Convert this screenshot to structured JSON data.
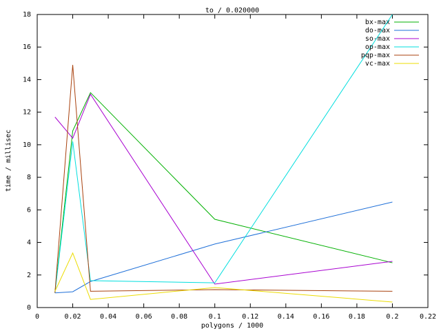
{
  "chart_data": {
    "type": "line",
    "title": "to / 0.020000",
    "x_label": "polygons / 1000",
    "y_label": "time / millisec",
    "x": [
      0.01,
      0.02,
      0.03,
      0.1,
      0.2
    ],
    "series": [
      {
        "name": "bx-max",
        "color": "#00b000",
        "values": [
          0.93,
          10.85,
          13.2,
          5.42,
          2.75
        ]
      },
      {
        "name": "do-max",
        "color": "#1e6fd8",
        "values": [
          0.9,
          0.97,
          1.6,
          3.9,
          6.48
        ]
      },
      {
        "name": "so-max",
        "color": "#a800d0",
        "values": [
          11.7,
          10.4,
          13.1,
          1.44,
          2.84
        ]
      },
      {
        "name": "op-max",
        "color": "#00dede",
        "values": [
          0.9,
          10.2,
          1.65,
          1.52,
          18.0
        ]
      },
      {
        "name": "pqp-max",
        "color": "#a8400c",
        "values": [
          0.9,
          14.9,
          1.0,
          1.1,
          1.0
        ]
      },
      {
        "name": "vc-max",
        "color": "#ecdc00",
        "values": [
          1.0,
          3.35,
          0.5,
          1.23,
          0.34
        ]
      }
    ],
    "xlim": [
      0,
      0.22
    ],
    "xticks": [
      0,
      0.02,
      0.04,
      0.06,
      0.08,
      0.1,
      0.12,
      0.14,
      0.16,
      0.18,
      0.2,
      0.22
    ],
    "ylim": [
      0,
      18
    ],
    "yticks": [
      0,
      2,
      4,
      6,
      8,
      10,
      12,
      14,
      16,
      18
    ],
    "legend": "top-right"
  }
}
